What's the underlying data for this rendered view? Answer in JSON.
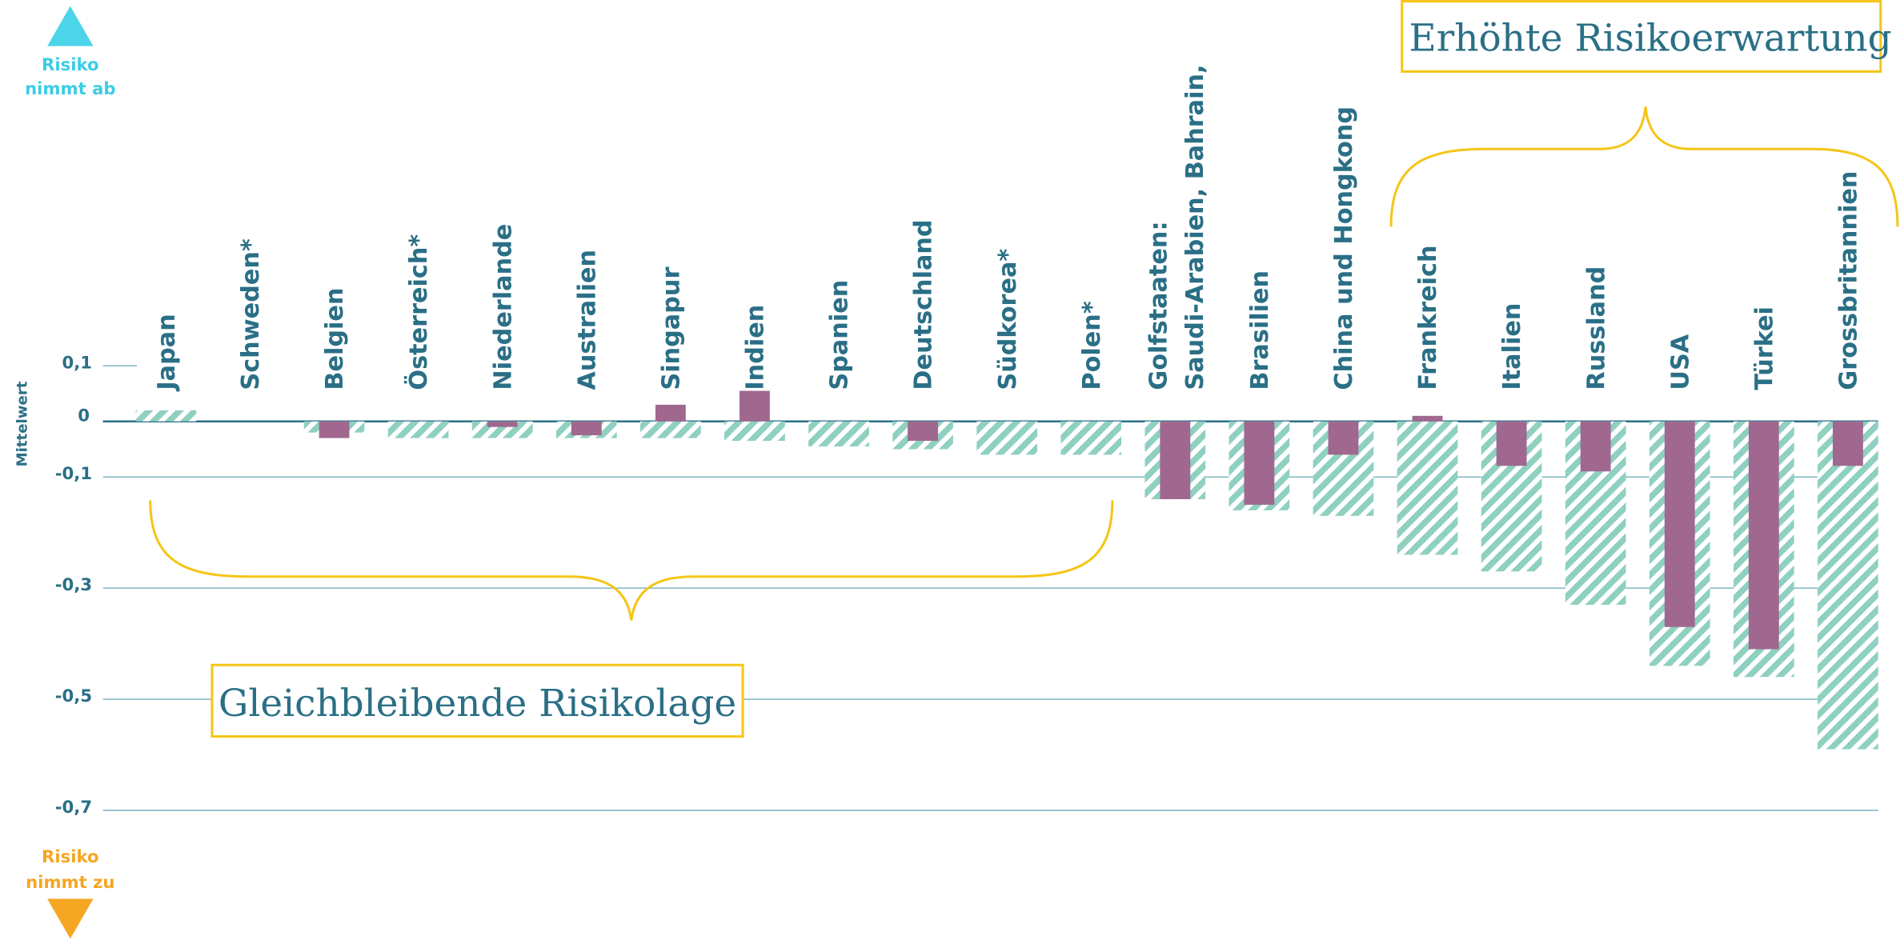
{
  "chart_data": {
    "type": "bar",
    "y_label": "Mittelwert",
    "categories": [
      "Japan",
      "Schweden*",
      "Belgien",
      "Österreich*",
      "Niederlande",
      "Australien",
      "Singapur",
      "Indien",
      "Spanien",
      "Deutschland",
      "Südkorea*",
      "Polen*",
      "Golfstaaten: Saudi-Arabien, Bahrain,",
      "Brasilien",
      "China und Hongkong",
      "Frankreich",
      "Italien",
      "Russland",
      "USA",
      "Türkei",
      "Grossbritannien"
    ],
    "series": [
      {
        "color": "#8fd0c0",
        "values": [
          0.02,
          null,
          -0.02,
          -0.03,
          -0.03,
          -0.03,
          -0.03,
          -0.035,
          -0.045,
          -0.05,
          -0.06,
          -0.06,
          -0.14,
          -0.16,
          -0.17,
          -0.24,
          -0.27,
          -0.33,
          -0.44,
          -0.46,
          -0.59
        ]
      },
      {
        "color": "#a0688f",
        "values": [
          null,
          null,
          -0.03,
          null,
          -0.01,
          -0.025,
          0.03,
          0.055,
          null,
          -0.035,
          null,
          null,
          -0.14,
          -0.15,
          -0.06,
          0.01,
          -0.08,
          -0.09,
          -0.37,
          -0.41,
          -0.08
        ]
      }
    ],
    "ylim": [
      -0.7,
      0.1
    ],
    "yticks": [
      {
        "value": 0.1,
        "label": "0,1"
      },
      0,
      {
        "value": -0.1,
        "label": "-0,1"
      },
      {
        "value": -0.3,
        "label": "-0,3"
      },
      {
        "value": -0.5,
        "label": "-0,5"
      },
      {
        "value": -0.7,
        "label": "-0,7"
      }
    ],
    "grid": true,
    "annotations": [
      "Erhöhte Risikoerwartung",
      "Gleichbleibende Risikolage"
    ],
    "risk_decreases": [
      "Risiko",
      "nimmt ab"
    ],
    "risk_increases": [
      "Risiko",
      "nimmt zu"
    ]
  }
}
